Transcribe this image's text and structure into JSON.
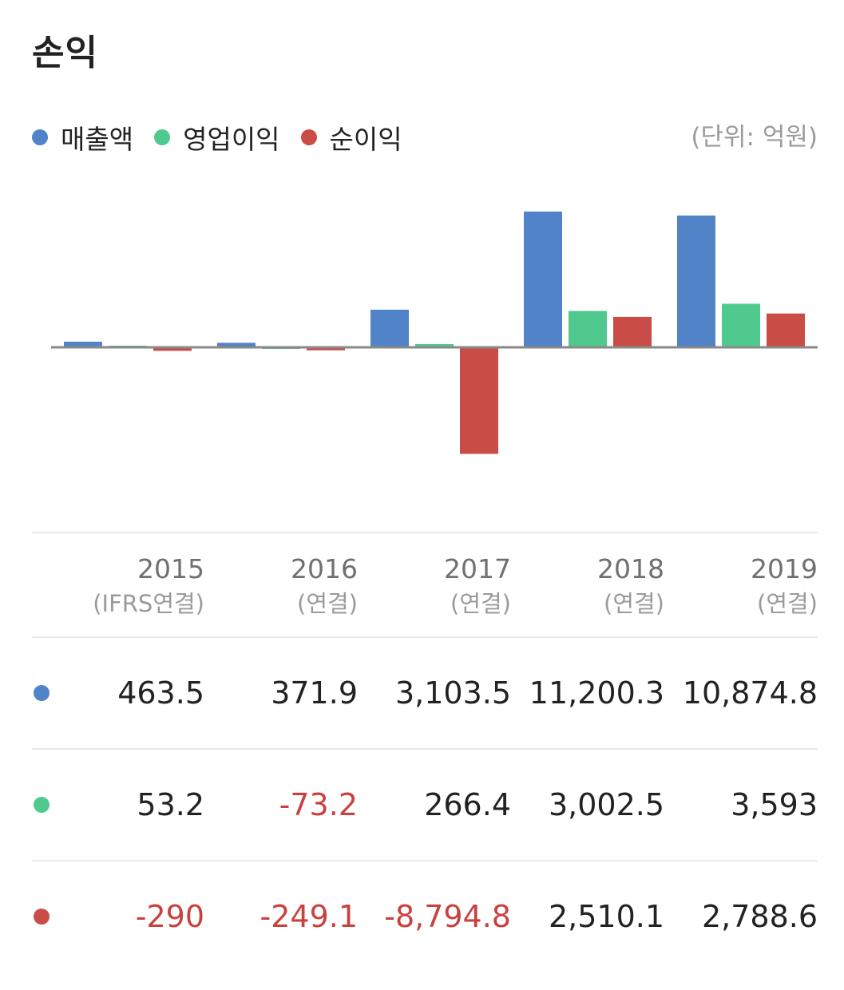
{
  "title": "손익",
  "unit": "(단위: 억원)",
  "colors": {
    "revenue": "#5183c8",
    "operating": "#50c98f",
    "net": "#c94c47"
  },
  "legend": [
    {
      "label": "매출액",
      "color": "#5183c8"
    },
    {
      "label": "영업이익",
      "color": "#50c98f"
    },
    {
      "label": "순이익",
      "color": "#c94c47"
    }
  ],
  "columns": [
    {
      "year": "2015",
      "basis": "(IFRS연결)"
    },
    {
      "year": "2016",
      "basis": "(연결)"
    },
    {
      "year": "2017",
      "basis": "(연결)"
    },
    {
      "year": "2018",
      "basis": "(연결)"
    },
    {
      "year": "2019",
      "basis": "(연결)"
    }
  ],
  "rows": [
    {
      "series": "매출액",
      "values": [
        "463.5",
        "371.9",
        "3,103.5",
        "11,200.3",
        "10,874.8"
      ]
    },
    {
      "series": "영업이익",
      "values": [
        "53.2",
        "-73.2",
        "266.4",
        "3,002.5",
        "3,593"
      ]
    },
    {
      "series": "순이익",
      "values": [
        "-290",
        "-249.1",
        "-8,794.8",
        "2,510.1",
        "2,788.6"
      ]
    }
  ],
  "chart_data": {
    "type": "bar",
    "categories": [
      "2015",
      "2016",
      "2017",
      "2018",
      "2019"
    ],
    "series": [
      {
        "name": "매출액",
        "values": [
          463.5,
          371.9,
          3103.5,
          11200.3,
          10874.8
        ]
      },
      {
        "name": "영업이익",
        "values": [
          53.2,
          -73.2,
          266.4,
          3002.5,
          3593
        ]
      },
      {
        "name": "순이익",
        "values": [
          -290,
          -249.1,
          -8794.8,
          2510.1,
          2788.6
        ]
      }
    ],
    "legend_position": "top-left",
    "grid": false
  }
}
